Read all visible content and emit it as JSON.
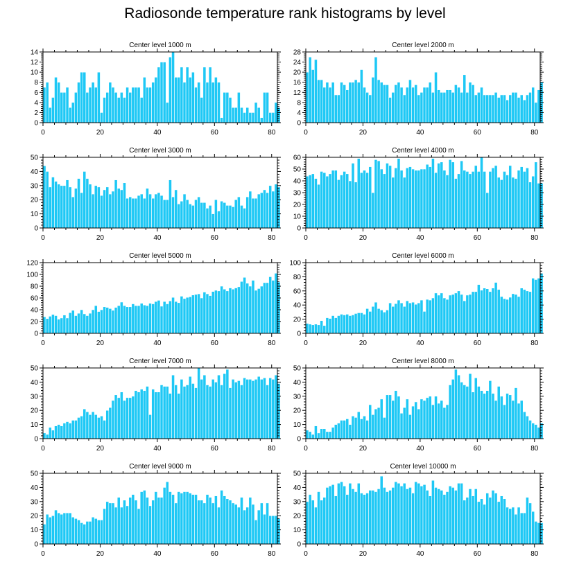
{
  "page": {
    "title": "Radiosonde temperature rank histograms by level",
    "colors": {
      "bar": "#1ec8f5",
      "bar_edge": "#ffffff",
      "axis": "#000000",
      "background": "#ffffff"
    }
  },
  "chart_data": [
    {
      "type": "bar",
      "title": "Center level 1000 m",
      "xlim": [
        0,
        82
      ],
      "ylim": [
        0,
        14
      ],
      "xticks": [
        0,
        20,
        40,
        60,
        80
      ],
      "yticks": [
        0,
        2,
        4,
        6,
        8,
        10,
        12,
        14
      ],
      "values": [
        7,
        8,
        3,
        5,
        9,
        8,
        6,
        6,
        7,
        3,
        4,
        6,
        8,
        10,
        10,
        6,
        7,
        8,
        7,
        10,
        2,
        5,
        6,
        8,
        7,
        6,
        5,
        6,
        5,
        7,
        6,
        7,
        7,
        7,
        5,
        9,
        7,
        7,
        8,
        9,
        11,
        12,
        12,
        4,
        13,
        14,
        9,
        9,
        11,
        8,
        11,
        9,
        10,
        7,
        8,
        5,
        11,
        8,
        11,
        8,
        9,
        8,
        1,
        6,
        6,
        5,
        3,
        3,
        6,
        3,
        2,
        3,
        2,
        2,
        4,
        3,
        1,
        6,
        6,
        2,
        2,
        4,
        3
      ],
      "xlabel": "",
      "ylabel": "",
      "grid": false
    },
    {
      "type": "bar",
      "title": "Center level 2000 m",
      "xlim": [
        0,
        82
      ],
      "ylim": [
        0,
        28
      ],
      "xticks": [
        0,
        20,
        40,
        60,
        80
      ],
      "yticks": [
        0,
        4,
        8,
        12,
        16,
        20,
        24,
        28
      ],
      "values": [
        20,
        26,
        21,
        25,
        17,
        17,
        14,
        16,
        14,
        16,
        11,
        11,
        16,
        15,
        13,
        16,
        16,
        17,
        16,
        21,
        14,
        12,
        11,
        18,
        26,
        17,
        16,
        15,
        15,
        10,
        12,
        15,
        16,
        14,
        11,
        14,
        17,
        14,
        15,
        11,
        12,
        14,
        14,
        16,
        12,
        20,
        13,
        12,
        12,
        13,
        13,
        12,
        15,
        14,
        12,
        19,
        12,
        16,
        15,
        11,
        12,
        14,
        11,
        11,
        11,
        11,
        12,
        10,
        11,
        11,
        9,
        11,
        12,
        12,
        10,
        11,
        9,
        11,
        12,
        14,
        8,
        13,
        16
      ],
      "xlabel": "",
      "ylabel": "",
      "grid": false
    },
    {
      "type": "bar",
      "title": "Center level 3000 m",
      "xlim": [
        0,
        82
      ],
      "ylim": [
        0,
        50
      ],
      "xticks": [
        0,
        20,
        40,
        60,
        80
      ],
      "yticks": [
        0,
        10,
        20,
        30,
        40,
        50
      ],
      "values": [
        44,
        40,
        29,
        36,
        33,
        31,
        30,
        30,
        34,
        29,
        22,
        28,
        35,
        25,
        40,
        35,
        31,
        24,
        30,
        29,
        23,
        27,
        29,
        24,
        26,
        34,
        28,
        27,
        32,
        21,
        22,
        21,
        21,
        23,
        24,
        21,
        28,
        24,
        21,
        24,
        25,
        23,
        20,
        20,
        34,
        22,
        27,
        17,
        19,
        24,
        20,
        17,
        16,
        20,
        22,
        18,
        18,
        14,
        16,
        10,
        20,
        12,
        19,
        18,
        16,
        16,
        15,
        20,
        22,
        16,
        14,
        22,
        26,
        21,
        21,
        24,
        25,
        27,
        25,
        30,
        26,
        31,
        29
      ],
      "xlabel": "",
      "ylabel": "",
      "grid": false
    },
    {
      "type": "bar",
      "title": "Center level 4000 m",
      "xlim": [
        0,
        82
      ],
      "ylim": [
        0,
        60
      ],
      "xticks": [
        0,
        20,
        40,
        60,
        80
      ],
      "yticks": [
        0,
        10,
        20,
        30,
        40,
        50,
        60
      ],
      "values": [
        44,
        45,
        46,
        42,
        37,
        48,
        47,
        44,
        46,
        49,
        49,
        41,
        45,
        48,
        46,
        40,
        55,
        39,
        59,
        47,
        49,
        47,
        52,
        30,
        58,
        57,
        50,
        46,
        55,
        53,
        43,
        51,
        59,
        49,
        43,
        51,
        52,
        50,
        49,
        49,
        50,
        50,
        54,
        52,
        59,
        47,
        55,
        56,
        49,
        45,
        58,
        56,
        42,
        46,
        57,
        49,
        48,
        46,
        48,
        53,
        48,
        60,
        48,
        30,
        48,
        51,
        53,
        43,
        41,
        48,
        45,
        53,
        43,
        42,
        49,
        52,
        48,
        51,
        39,
        44,
        56,
        38,
        38
      ],
      "xlabel": "",
      "ylabel": "",
      "grid": false
    },
    {
      "type": "bar",
      "title": "Center level 5000 m",
      "xlim": [
        0,
        82
      ],
      "ylim": [
        0,
        120
      ],
      "xticks": [
        0,
        20,
        40,
        60,
        80
      ],
      "yticks": [
        0,
        20,
        40,
        60,
        80,
        100,
        120
      ],
      "values": [
        28,
        25,
        29,
        32,
        30,
        24,
        26,
        31,
        26,
        35,
        39,
        30,
        34,
        40,
        33,
        30,
        34,
        40,
        47,
        37,
        40,
        45,
        44,
        42,
        39,
        44,
        47,
        53,
        47,
        45,
        45,
        50,
        47,
        47,
        51,
        48,
        47,
        51,
        50,
        54,
        56,
        46,
        54,
        50,
        55,
        61,
        54,
        52,
        63,
        59,
        61,
        62,
        65,
        66,
        67,
        60,
        70,
        67,
        64,
        71,
        73,
        72,
        80,
        75,
        72,
        77,
        75,
        77,
        79,
        88,
        95,
        85,
        80,
        90,
        73,
        76,
        80,
        86,
        86,
        96,
        90,
        102,
        87
      ],
      "xlabel": "",
      "ylabel": "",
      "grid": false
    },
    {
      "type": "bar",
      "title": "Center level 6000 m",
      "xlim": [
        0,
        82
      ],
      "ylim": [
        0,
        100
      ],
      "xticks": [
        0,
        20,
        40,
        60,
        80
      ],
      "yticks": [
        0,
        20,
        40,
        60,
        80,
        100
      ],
      "values": [
        14,
        13,
        12,
        13,
        12,
        18,
        11,
        22,
        21,
        25,
        22,
        25,
        27,
        26,
        27,
        25,
        26,
        28,
        29,
        29,
        27,
        35,
        31,
        38,
        44,
        35,
        33,
        30,
        33,
        43,
        38,
        42,
        47,
        43,
        38,
        46,
        43,
        44,
        41,
        43,
        47,
        31,
        48,
        47,
        50,
        57,
        54,
        57,
        50,
        48,
        54,
        55,
        57,
        60,
        55,
        46,
        54,
        55,
        59,
        59,
        69,
        61,
        64,
        63,
        59,
        64,
        72,
        62,
        52,
        49,
        48,
        51,
        56,
        55,
        52,
        64,
        62,
        60,
        59,
        78,
        76,
        78,
        85
      ],
      "xlabel": "",
      "ylabel": "",
      "grid": false
    },
    {
      "type": "bar",
      "title": "Center level 7000 m",
      "xlim": [
        0,
        82
      ],
      "ylim": [
        0,
        50
      ],
      "xticks": [
        0,
        20,
        40,
        60,
        80
      ],
      "yticks": [
        0,
        10,
        20,
        30,
        40,
        50
      ],
      "values": [
        4,
        3,
        8,
        6,
        9,
        10,
        9,
        11,
        12,
        11,
        13,
        13,
        15,
        16,
        21,
        19,
        17,
        19,
        17,
        15,
        16,
        13,
        20,
        22,
        27,
        31,
        29,
        33,
        27,
        29,
        29,
        30,
        34,
        33,
        35,
        34,
        37,
        17,
        35,
        33,
        33,
        38,
        37,
        37,
        32,
        45,
        38,
        32,
        42,
        37,
        38,
        44,
        39,
        36,
        50,
        42,
        45,
        38,
        37,
        42,
        40,
        45,
        38,
        46,
        49,
        36,
        42,
        40,
        41,
        38,
        43,
        42,
        42,
        41,
        42,
        44,
        42,
        43,
        38,
        43,
        42,
        45,
        39
      ],
      "xlabel": "",
      "ylabel": "",
      "grid": false
    },
    {
      "type": "bar",
      "title": "Center level 8000 m",
      "xlim": [
        0,
        82
      ],
      "ylim": [
        0,
        50
      ],
      "xticks": [
        0,
        20,
        40,
        60,
        80
      ],
      "yticks": [
        0,
        10,
        20,
        30,
        40,
        50
      ],
      "values": [
        6,
        5,
        3,
        9,
        4,
        7,
        7,
        5,
        5,
        8,
        10,
        11,
        13,
        13,
        14,
        10,
        16,
        15,
        19,
        14,
        16,
        13,
        24,
        17,
        21,
        22,
        28,
        15,
        31,
        31,
        27,
        34,
        30,
        18,
        22,
        28,
        17,
        23,
        26,
        21,
        28,
        27,
        29,
        30,
        24,
        30,
        25,
        27,
        22,
        24,
        38,
        42,
        49,
        45,
        40,
        38,
        37,
        46,
        33,
        43,
        37,
        34,
        32,
        34,
        41,
        32,
        27,
        37,
        30,
        24,
        32,
        31,
        27,
        36,
        25,
        27,
        19,
        16,
        13,
        11,
        10,
        8,
        11
      ],
      "xlabel": "",
      "ylabel": "",
      "grid": false
    },
    {
      "type": "bar",
      "title": "Center level 9000 m",
      "xlim": [
        0,
        82
      ],
      "ylim": [
        0,
        50
      ],
      "xticks": [
        0,
        20,
        40,
        60,
        80
      ],
      "yticks": [
        0,
        10,
        20,
        30,
        40,
        50
      ],
      "values": [
        14,
        21,
        19,
        20,
        24,
        22,
        21,
        22,
        22,
        22,
        19,
        18,
        17,
        15,
        14,
        16,
        16,
        19,
        18,
        17,
        17,
        25,
        30,
        29,
        29,
        26,
        33,
        26,
        31,
        27,
        33,
        35,
        31,
        25,
        37,
        38,
        33,
        27,
        31,
        37,
        33,
        33,
        40,
        44,
        37,
        35,
        29,
        37,
        36,
        37,
        37,
        36,
        35,
        35,
        31,
        31,
        29,
        35,
        33,
        29,
        34,
        26,
        38,
        34,
        32,
        31,
        29,
        28,
        26,
        33,
        24,
        26,
        33,
        28,
        17,
        24,
        29,
        21,
        29,
        20,
        20,
        20,
        18
      ],
      "xlabel": "",
      "ylabel": "",
      "grid": false
    },
    {
      "type": "bar",
      "title": "Center level 10000 m",
      "xlim": [
        0,
        82
      ],
      "ylim": [
        0,
        50
      ],
      "xticks": [
        0,
        20,
        40,
        60,
        80
      ],
      "yticks": [
        0,
        10,
        20,
        30,
        40,
        50
      ],
      "values": [
        30,
        35,
        31,
        26,
        37,
        31,
        33,
        40,
        41,
        42,
        34,
        43,
        44,
        41,
        35,
        43,
        39,
        37,
        43,
        36,
        35,
        36,
        38,
        38,
        37,
        39,
        48,
        40,
        37,
        38,
        40,
        44,
        43,
        41,
        43,
        39,
        40,
        36,
        44,
        43,
        41,
        42,
        38,
        34,
        45,
        40,
        39,
        38,
        35,
        37,
        41,
        40,
        38,
        43,
        43,
        31,
        33,
        39,
        34,
        39,
        30,
        32,
        28,
        36,
        33,
        38,
        36,
        30,
        34,
        32,
        26,
        25,
        26,
        21,
        26,
        22,
        22,
        33,
        29,
        23,
        16,
        15,
        15
      ],
      "xlabel": "",
      "ylabel": "",
      "grid": false
    }
  ]
}
